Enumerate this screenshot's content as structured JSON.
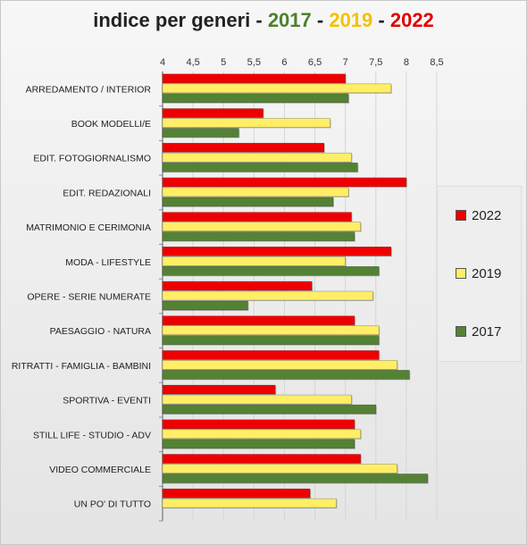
{
  "chart_data": {
    "type": "bar",
    "orientation": "horizontal",
    "title_parts": [
      {
        "text": "indice per generi - ",
        "color": "#222222"
      },
      {
        "text": "2017",
        "color": "#4f7f2e"
      },
      {
        "text": " - ",
        "color": "#222222"
      },
      {
        "text": "2019",
        "color": "#f2c200"
      },
      {
        "text": " - ",
        "color": "#222222"
      },
      {
        "text": "2022",
        "color": "#e00000"
      }
    ],
    "x_ticks": [
      "4",
      "4,5",
      "5",
      "5,5",
      "6",
      "6,5",
      "7",
      "7,5",
      "8",
      "8,5"
    ],
    "xlim": [
      4,
      8.5
    ],
    "grid": true,
    "legend_position": "right",
    "categories": [
      "ARREDAMENTO / INTERIOR",
      "BOOK MODELLI/E",
      "EDIT. FOTOGIORNALISMO",
      "EDIT. REDAZIONALI",
      "MATRIMONIO E CERIMONIA",
      "MODA - LIFESTYLE",
      "OPERE - SERIE NUMERATE",
      "PAESAGGIO - NATURA",
      "RITRATTI - FAMIGLIA - BAMBINI",
      "SPORTIVA - EVENTI",
      "STILL LIFE - STUDIO - ADV",
      "VIDEO COMMERCIALE",
      "UN PO' DI TUTTO"
    ],
    "series": [
      {
        "name": "2022",
        "color": "#ee0000",
        "values": [
          7.0,
          5.65,
          6.65,
          8.0,
          7.1,
          7.75,
          6.45,
          7.15,
          7.55,
          5.85,
          7.15,
          7.25,
          6.42
        ]
      },
      {
        "name": "2019",
        "color": "#ffee66",
        "values": [
          7.75,
          6.75,
          7.1,
          7.05,
          7.25,
          7.0,
          7.45,
          7.55,
          7.85,
          7.1,
          7.25,
          7.85,
          6.85
        ]
      },
      {
        "name": "2017",
        "color": "#548235",
        "values": [
          7.05,
          5.25,
          7.2,
          6.8,
          7.15,
          7.55,
          5.4,
          7.55,
          8.05,
          7.5,
          7.15,
          8.35,
          null
        ]
      }
    ]
  }
}
